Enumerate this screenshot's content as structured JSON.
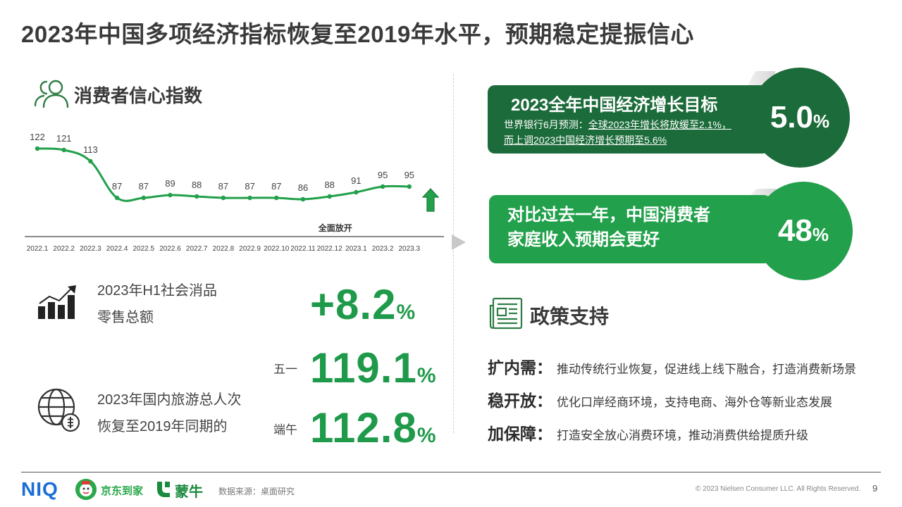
{
  "page": {
    "title": "2023年中国多项经济指标恢复至2019年水平，预期稳定提振信心"
  },
  "consumer_confidence": {
    "section_title": "消费者信心指数",
    "annotation": "全面放开"
  },
  "chart_data": {
    "type": "line",
    "categories": [
      "2022.1",
      "2022.2",
      "2022.3",
      "2022.4",
      "2022.5",
      "2022.6",
      "2022.7",
      "2022.8",
      "2022.9",
      "2022.10",
      "2022.11",
      "2022.12",
      "2023.1",
      "2023.2",
      "2023.3"
    ],
    "values": [
      122,
      121,
      113,
      87,
      87,
      89,
      88,
      87,
      87,
      87,
      86,
      88,
      91,
      95,
      95
    ],
    "ylim": [
      60,
      130
    ],
    "grid": false,
    "legend": "none",
    "line_color": "#22a04b",
    "annotation": {
      "text": "全面放开",
      "at": "2022.12"
    }
  },
  "stats": {
    "retail_label_1": "2023年H1社会消品",
    "retail_label_2": "零售总额",
    "retail_value": "+8.2",
    "travel_label_1": "2023年国内旅游总人次",
    "travel_label_2": "恢复至2019年同期的",
    "mayday_label": "五一",
    "mayday_value": "119.1",
    "duanwu_label": "端午",
    "duanwu_value": "112.8",
    "pct": "%"
  },
  "cards": {
    "growth_title": "2023全年中国经济增长目标",
    "growth_desc_prefix": "世界银行6月预测：",
    "growth_desc_underlined": "全球2023年增长将放缓至2.1%，而上调2023中国经济增长预期至5.6%",
    "growth_value": "5.0",
    "income_text_1": "对比过去一年，中国消费者",
    "income_text_2": "家庭收入预期会更好",
    "income_value": "48",
    "pct": "%"
  },
  "policy": {
    "title": "政策支持",
    "items": [
      {
        "head": "扩内需：",
        "text": "推动传统行业恢复，促进线上线下融合，打造消费新场景"
      },
      {
        "head": "稳开放：",
        "text": "优化口岸经商环境，支持电商、海外仓等新业态发展"
      },
      {
        "head": "加保障：",
        "text": "打造安全放心消费环境，推动消费供给提质升级"
      }
    ]
  },
  "footer": {
    "niq": "NIQ",
    "jd": "京东到家",
    "mengniu": "蒙牛",
    "source": "数据来源：桌面研究",
    "copyright": "© 2023 Nielsen Consumer LLC. All Rights Reserved.",
    "page_number": "9"
  },
  "colors": {
    "dark_green": "#1c6b3a",
    "green": "#22a04b",
    "text_green": "#1f9a4a",
    "niq_blue": "#1a6fd6"
  },
  "icons": {
    "section": "users-icon",
    "retail": "growth-chart-icon",
    "travel": "globe-coin-icon",
    "policy": "newspaper-icon",
    "trend": "up-arrow-icon"
  }
}
